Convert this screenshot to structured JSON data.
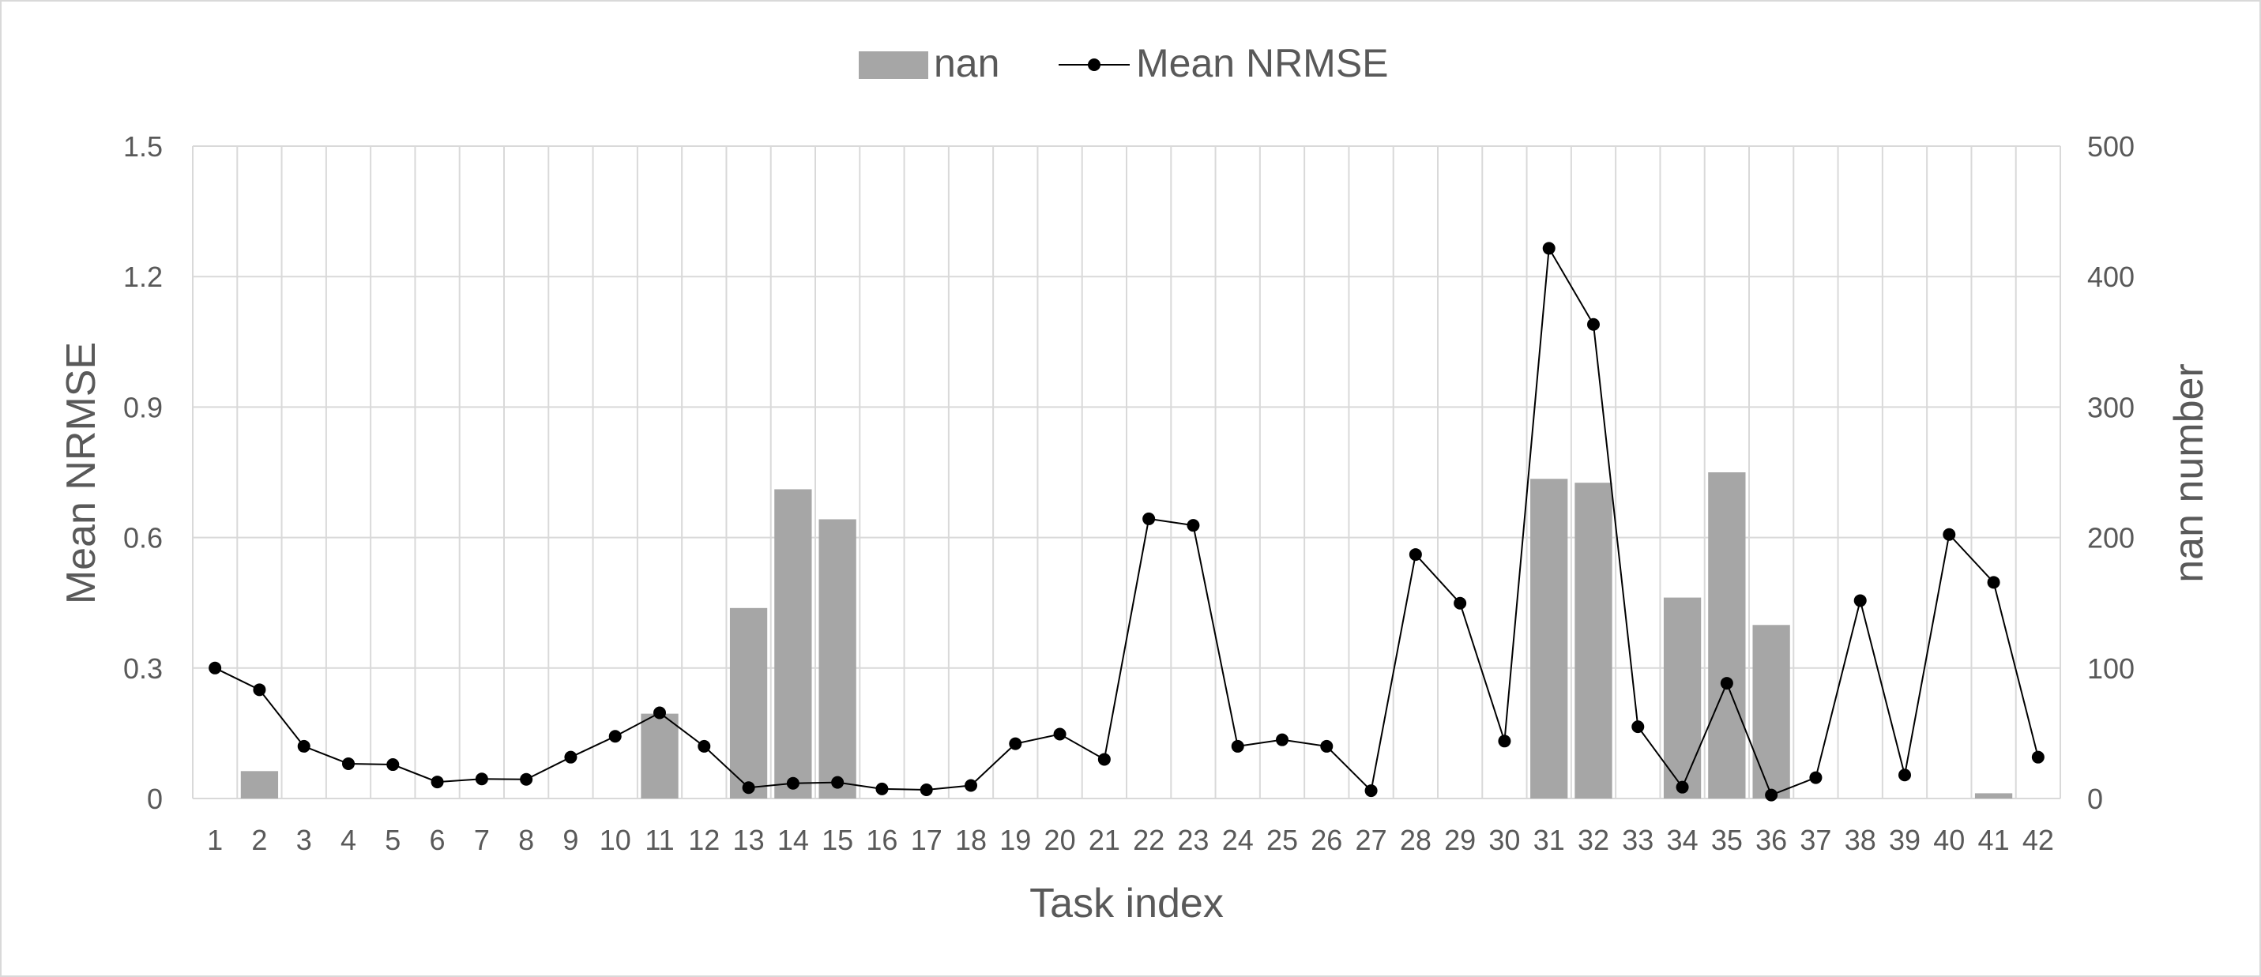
{
  "chart_data": {
    "type": "bar+line",
    "categories": [
      "1",
      "2",
      "3",
      "4",
      "5",
      "6",
      "7",
      "8",
      "9",
      "10",
      "11",
      "12",
      "13",
      "14",
      "15",
      "16",
      "17",
      "18",
      "19",
      "20",
      "21",
      "22",
      "23",
      "24",
      "25",
      "26",
      "27",
      "28",
      "29",
      "30",
      "31",
      "32",
      "33",
      "34",
      "35",
      "36",
      "37",
      "38",
      "39",
      "40",
      "41",
      "42"
    ],
    "xlabel": "Task index",
    "ylabel_left": "Mean NRMSE",
    "ylabel_right": "nan number",
    "ylim_left": [
      0,
      1.5
    ],
    "ylim_right": [
      0,
      500
    ],
    "yticks_left": [
      "0",
      "0.3",
      "0.6",
      "0.9",
      "1.2",
      "1.5"
    ],
    "yticks_right": [
      "0",
      "100",
      "200",
      "300",
      "400",
      "500"
    ],
    "grid": true,
    "legend_position": "top-center",
    "legend": [
      "nan",
      "Mean NRMSE"
    ],
    "series": [
      {
        "name": "nan",
        "type": "bar",
        "axis": "right",
        "color": "#a6a6a6",
        "values": [
          0,
          21,
          0,
          0,
          0,
          0,
          0,
          0,
          0,
          0,
          65,
          0,
          146,
          237,
          214,
          0,
          0,
          0,
          0,
          0,
          0,
          0,
          0,
          0,
          0,
          0,
          0,
          0,
          0,
          0,
          245,
          242,
          0,
          154,
          250,
          133,
          0,
          0,
          0,
          0,
          4,
          0
        ]
      },
      {
        "name": "Mean NRMSE",
        "type": "line",
        "axis": "left",
        "color": "#000000",
        "values": [
          0.3,
          0.25,
          0.12,
          0.08,
          0.078,
          0.038,
          0.045,
          0.044,
          0.095,
          0.143,
          0.197,
          0.12,
          0.025,
          0.035,
          0.037,
          0.022,
          0.02,
          0.03,
          0.126,
          0.148,
          0.09,
          0.643,
          0.628,
          0.12,
          0.135,
          0.12,
          0.018,
          0.561,
          0.449,
          0.132,
          1.265,
          1.09,
          0.165,
          0.026,
          0.265,
          0.008,
          0.048,
          0.455,
          0.054,
          0.607,
          0.497,
          0.095
        ]
      }
    ]
  }
}
